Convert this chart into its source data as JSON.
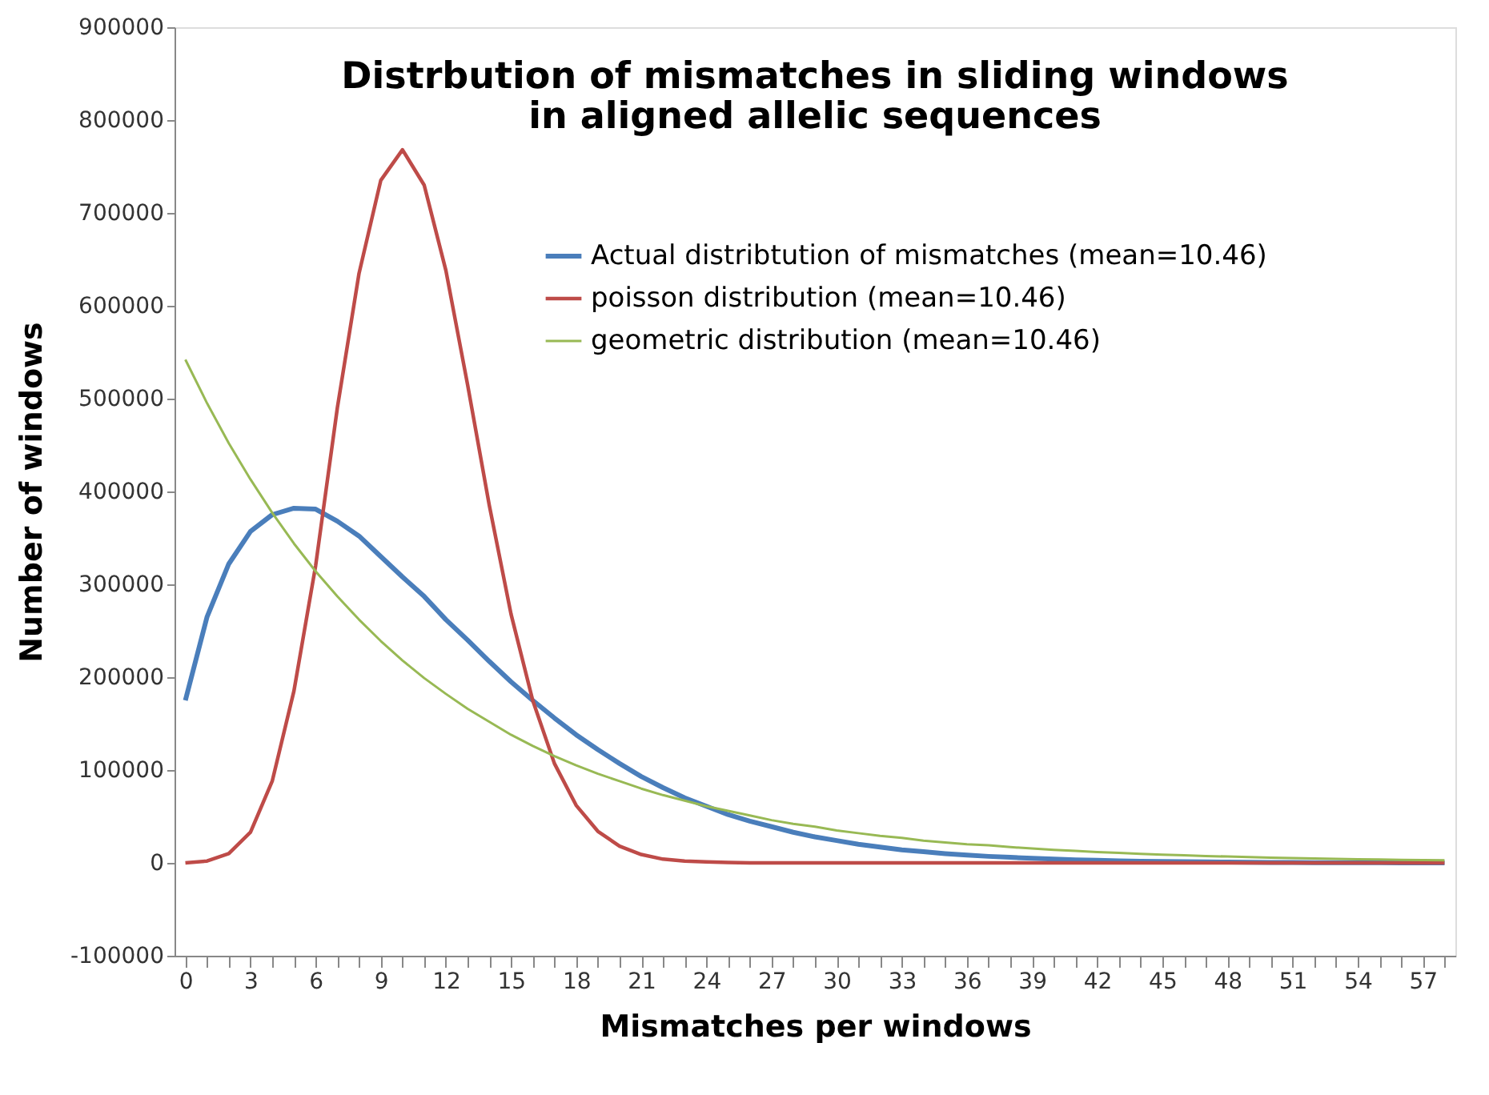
{
  "chart_data": {
    "type": "line",
    "title": [
      "Distrbution of mismatches in sliding windows",
      "in aligned allelic sequences"
    ],
    "xlabel": "Mismatches per windows",
    "ylabel": "Number of windows",
    "x": [
      0,
      1,
      2,
      3,
      4,
      5,
      6,
      7,
      8,
      9,
      10,
      11,
      12,
      13,
      14,
      15,
      16,
      17,
      18,
      19,
      20,
      21,
      22,
      23,
      24,
      25,
      26,
      27,
      28,
      29,
      30,
      31,
      32,
      33,
      34,
      35,
      36,
      37,
      38,
      39,
      40,
      41,
      42,
      43,
      44,
      45,
      46,
      47,
      48,
      49,
      50,
      51,
      52,
      53,
      54,
      55,
      56,
      57,
      58
    ],
    "xlim": [
      -0.5,
      58.5
    ],
    "xticks": [
      0,
      {
        "value": 1,
        "label": null
      },
      {
        "value": 2,
        "label": null
      },
      3,
      {
        "value": 4,
        "label": null
      },
      {
        "value": 5,
        "label": null
      },
      6,
      {
        "value": 7,
        "label": null
      },
      {
        "value": 8,
        "label": null
      },
      9,
      {
        "value": 10,
        "label": null
      },
      {
        "value": 11,
        "label": null
      },
      12,
      {
        "value": 13,
        "label": null
      },
      {
        "value": 14,
        "label": null
      },
      15,
      {
        "value": 16,
        "label": null
      },
      {
        "value": 17,
        "label": null
      },
      18,
      {
        "value": 19,
        "label": null
      },
      {
        "value": 20,
        "label": null
      },
      21,
      {
        "value": 22,
        "label": null
      },
      {
        "value": 23,
        "label": null
      },
      24,
      {
        "value": 25,
        "label": null
      },
      {
        "value": 26,
        "label": null
      },
      27,
      {
        "value": 28,
        "label": null
      },
      {
        "value": 29,
        "label": null
      },
      30,
      {
        "value": 31,
        "label": null
      },
      {
        "value": 32,
        "label": null
      },
      33,
      {
        "value": 34,
        "label": null
      },
      {
        "value": 35,
        "label": null
      },
      36,
      {
        "value": 37,
        "label": null
      },
      {
        "value": 38,
        "label": null
      },
      39,
      {
        "value": 40,
        "label": null
      },
      {
        "value": 41,
        "label": null
      },
      42,
      {
        "value": 43,
        "label": null
      },
      {
        "value": 44,
        "label": null
      },
      45,
      {
        "value": 46,
        "label": null
      },
      {
        "value": 47,
        "label": null
      },
      48,
      {
        "value": 49,
        "label": null
      },
      {
        "value": 50,
        "label": null
      },
      51,
      {
        "value": 52,
        "label": null
      },
      {
        "value": 53,
        "label": null
      },
      54,
      {
        "value": 55,
        "label": null
      },
      {
        "value": 56,
        "label": null
      },
      57,
      {
        "value": 58,
        "label": null
      }
    ],
    "ylim": [
      -100000,
      900000
    ],
    "yticks": [
      -100000,
      0,
      100000,
      200000,
      300000,
      400000,
      500000,
      600000,
      700000,
      800000,
      900000
    ],
    "grid": false,
    "legend": "top right",
    "marker": "none",
    "line_style": "solid",
    "series": [
      {
        "name": "Actual distribtution of mismatches (mean=10.46)",
        "color": "#4a7ebb",
        "values": [
          175000,
          265000,
          322000,
          357000,
          375000,
          382000,
          381000,
          368000,
          352000,
          330000,
          308000,
          287000,
          262000,
          240000,
          217000,
          195000,
          175000,
          156000,
          138000,
          122000,
          107000,
          93000,
          81000,
          70000,
          61000,
          52000,
          45000,
          39000,
          33000,
          28000,
          24000,
          20000,
          17000,
          14000,
          12000,
          10000,
          8500,
          7000,
          6000,
          5000,
          4000,
          3300,
          2700,
          2200,
          1800,
          1500,
          1200,
          1000,
          800,
          600,
          500,
          400,
          300,
          300,
          200,
          200,
          100,
          100,
          100
        ]
      },
      {
        "name": "poisson distribution (mean=10.46)",
        "color": "#be4b48",
        "values": [
          0,
          2000,
          10000,
          33000,
          88000,
          185000,
          320000,
          490000,
          635000,
          735000,
          768000,
          730000,
          638000,
          515000,
          385000,
          268000,
          175000,
          107000,
          62000,
          34000,
          18000,
          9000,
          4000,
          2000,
          1000,
          400,
          0,
          0,
          0,
          0,
          0,
          0,
          0,
          0,
          0,
          0,
          0,
          0,
          0,
          0,
          0,
          0,
          0,
          0,
          0,
          0,
          0,
          0,
          0,
          0,
          0,
          0,
          0,
          0,
          0,
          0,
          0,
          0,
          0
        ]
      },
      {
        "name": "geometric distribution (mean=10.46)",
        "color": "#98b954",
        "values": [
          542000,
          495000,
          452000,
          413000,
          377000,
          344000,
          314000,
          287000,
          262000,
          239000,
          218000,
          199000,
          182000,
          166000,
          152000,
          138000,
          126000,
          115000,
          105000,
          96000,
          88000,
          80000,
          73000,
          67000,
          61000,
          56000,
          51000,
          46000,
          42000,
          39000,
          35000,
          32000,
          29000,
          27000,
          24000,
          22000,
          20000,
          19000,
          17000,
          15500,
          14000,
          13000,
          11700,
          10700,
          9800,
          8900,
          8100,
          7400,
          6800,
          6200,
          5600,
          5100,
          4700,
          4300,
          3900,
          3600,
          3200,
          3000,
          2700
        ]
      }
    ]
  }
}
